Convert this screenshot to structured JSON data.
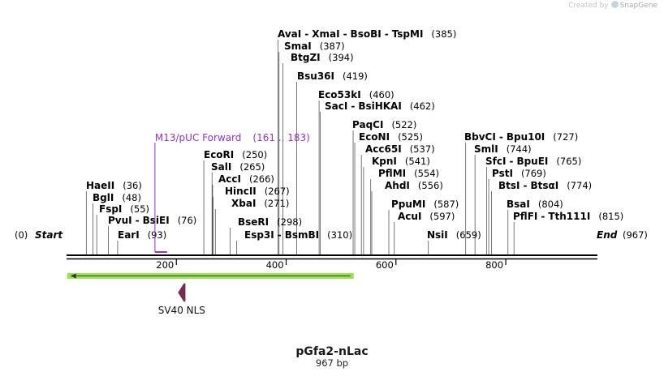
{
  "credit": {
    "prefix": "Created by",
    "brand": "SnapGene"
  },
  "sequence": {
    "name": "pGfa2-nLac",
    "length_label": "967 bp",
    "length": 967
  },
  "ends": {
    "start_label": "Start",
    "start_pos": "(0)",
    "end_label": "End",
    "end_pos": "(967)"
  },
  "ruler": {
    "ticks": [
      {
        "value": 200,
        "label": "200"
      },
      {
        "value": 400,
        "label": "400"
      },
      {
        "value": 600,
        "label": "600"
      },
      {
        "value": 800,
        "label": "800"
      }
    ]
  },
  "enzymes": [
    {
      "names": [
        "EarI"
      ],
      "pos": 93,
      "pos_label": "(93)"
    },
    {
      "names": [
        "PvuI",
        "BsiEI"
      ],
      "pos": 76,
      "pos_label": "(76)"
    },
    {
      "names": [
        "FspI"
      ],
      "pos": 55,
      "pos_label": "(55)"
    },
    {
      "names": [
        "BglI"
      ],
      "pos": 48,
      "pos_label": "(48)"
    },
    {
      "names": [
        "HaeII"
      ],
      "pos": 36,
      "pos_label": "(36)"
    },
    {
      "names": [
        "EcoRI"
      ],
      "pos": 250,
      "pos_label": "(250)"
    },
    {
      "names": [
        "SalI"
      ],
      "pos": 265,
      "pos_label": "(265)"
    },
    {
      "names": [
        "AccI"
      ],
      "pos": 266,
      "pos_label": "(266)"
    },
    {
      "names": [
        "HincII"
      ],
      "pos": 267,
      "pos_label": "(267)"
    },
    {
      "names": [
        "XbaI"
      ],
      "pos": 271,
      "pos_label": "(271)"
    },
    {
      "names": [
        "BseRI"
      ],
      "pos": 298,
      "pos_label": "(298)"
    },
    {
      "names": [
        "Esp3I",
        "BsmBI"
      ],
      "pos": 310,
      "pos_label": "(310)"
    },
    {
      "names": [
        "AvaI",
        "XmaI",
        "BsoBI",
        "TspMI"
      ],
      "pos": 385,
      "pos_label": "(385)"
    },
    {
      "names": [
        "SmaI"
      ],
      "pos": 387,
      "pos_label": "(387)"
    },
    {
      "names": [
        "BtgZI"
      ],
      "pos": 394,
      "pos_label": "(394)"
    },
    {
      "names": [
        "Bsu36I"
      ],
      "pos": 419,
      "pos_label": "(419)"
    },
    {
      "names": [
        "Eco53kI"
      ],
      "pos": 460,
      "pos_label": "(460)"
    },
    {
      "names": [
        "SacI",
        "BsiHKAI"
      ],
      "pos": 462,
      "pos_label": "(462)"
    },
    {
      "names": [
        "PaqCI"
      ],
      "pos": 522,
      "pos_label": "(522)"
    },
    {
      "names": [
        "EcoNI"
      ],
      "pos": 525,
      "pos_label": "(525)"
    },
    {
      "names": [
        "Acc65I"
      ],
      "pos": 537,
      "pos_label": "(537)"
    },
    {
      "names": [
        "KpnI"
      ],
      "pos": 541,
      "pos_label": "(541)"
    },
    {
      "names": [
        "PflMI"
      ],
      "pos": 554,
      "pos_label": "(554)"
    },
    {
      "names": [
        "AhdI"
      ],
      "pos": 556,
      "pos_label": "(556)"
    },
    {
      "names": [
        "PpuMI"
      ],
      "pos": 587,
      "pos_label": "(587)"
    },
    {
      "names": [
        "AcuI"
      ],
      "pos": 597,
      "pos_label": "(597)"
    },
    {
      "names": [
        "NsiI"
      ],
      "pos": 659,
      "pos_label": "(659)"
    },
    {
      "names": [
        "BbvCI",
        "Bpu10I"
      ],
      "pos": 727,
      "pos_label": "(727)"
    },
    {
      "names": [
        "SmlI"
      ],
      "pos": 744,
      "pos_label": "(744)"
    },
    {
      "names": [
        "SfcI",
        "BpuEI"
      ],
      "pos": 765,
      "pos_label": "(765)"
    },
    {
      "names": [
        "PstI"
      ],
      "pos": 769,
      "pos_label": "(769)"
    },
    {
      "names": [
        "BtsI",
        "BtsαI"
      ],
      "pos": 774,
      "pos_label": "(774)"
    },
    {
      "names": [
        "BsaI"
      ],
      "pos": 804,
      "pos_label": "(804)"
    },
    {
      "names": [
        "PflFI",
        "Tth111I"
      ],
      "pos": 815,
      "pos_label": "(815)"
    }
  ],
  "primer": {
    "name": "M13/pUC Forward",
    "range_label": "(161 .. 183)",
    "start": 161,
    "end": 183,
    "color": "#9b30c8"
  },
  "features": [
    {
      "name": "",
      "type": "orf-arrow",
      "start": 1,
      "end": 523,
      "direction": "reverse",
      "color": "#99e34c"
    },
    {
      "name": "SV40 NLS",
      "type": "nls",
      "start": 199,
      "end": 219,
      "direction": "reverse",
      "color": "#7b2a54"
    }
  ],
  "colors": {
    "backbone": "#000000",
    "primer": "#9b30c8",
    "orf": "#99e34c",
    "nls": "#7b2a54"
  }
}
